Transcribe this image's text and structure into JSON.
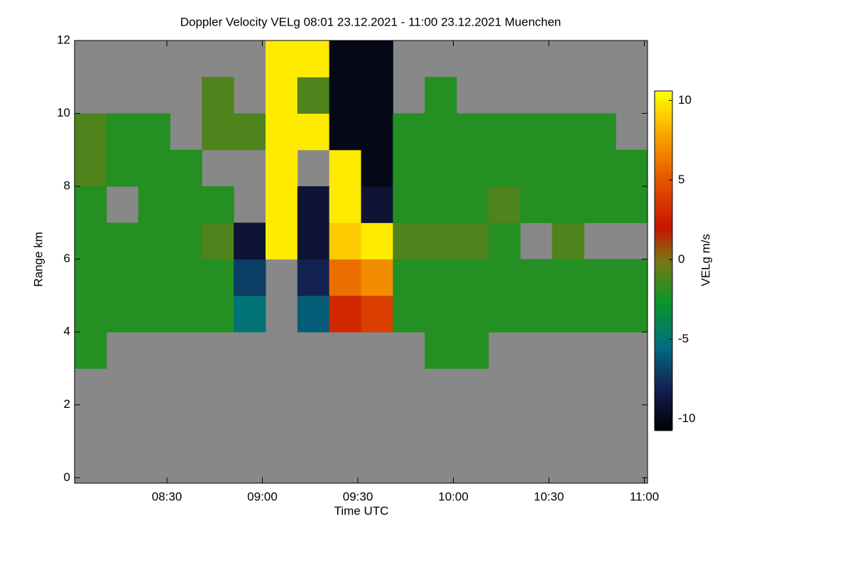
{
  "chart_data": {
    "type": "heatmap",
    "title": "Doppler Velocity VELg   08:01 23.12.2021 - 11:00 23.12.2021 Muenchen",
    "x_label": "Time UTC",
    "y_label": "Range km",
    "colorbar_label": "VELg m/s",
    "xlim": [
      481,
      661
    ],
    "xticks": [
      {
        "value": 510,
        "label": "08:30"
      },
      {
        "value": 540,
        "label": "09:00"
      },
      {
        "value": 570,
        "label": "09:30"
      },
      {
        "value": 600,
        "label": "10:00"
      },
      {
        "value": 630,
        "label": "10:30"
      },
      {
        "value": 660,
        "label": "11:00"
      }
    ],
    "ylim": [
      -0.15,
      12
    ],
    "yticks": [
      0,
      2,
      4,
      6,
      8,
      10,
      12
    ],
    "clim": [
      -10.7,
      10.6
    ],
    "cticks": [
      -10,
      -5,
      0,
      5,
      10
    ],
    "x": [
      486,
      496,
      506,
      516,
      526,
      536,
      546,
      556,
      566,
      576,
      586,
      596,
      606,
      616,
      626,
      636,
      646,
      656
    ],
    "y": [
      0.5,
      1.5,
      2.5,
      3.5,
      4.5,
      5.5,
      6.5,
      7.5,
      8.5,
      9.5,
      10.5,
      11.5
    ],
    "z": [
      [
        null,
        null,
        null,
        null,
        null,
        null,
        null,
        null,
        null,
        null,
        null,
        null,
        null,
        null,
        null,
        null,
        null,
        null
      ],
      [
        null,
        null,
        null,
        null,
        null,
        null,
        null,
        null,
        null,
        null,
        null,
        null,
        null,
        null,
        null,
        null,
        null,
        null
      ],
      [
        null,
        null,
        null,
        null,
        null,
        null,
        null,
        null,
        null,
        null,
        null,
        null,
        null,
        null,
        null,
        null,
        null,
        null
      ],
      [
        -2,
        null,
        null,
        null,
        null,
        null,
        null,
        null,
        null,
        null,
        null,
        -2,
        -2,
        null,
        null,
        null,
        null,
        null
      ],
      [
        -2,
        -2,
        -2,
        -2,
        -2,
        -5,
        null,
        -6,
        3,
        4,
        -2,
        -2,
        -2,
        -2,
        -2,
        -2,
        -2,
        -2
      ],
      [
        -2,
        -2,
        -2,
        -2,
        -2,
        -7,
        null,
        -8,
        6,
        7,
        -2,
        -2,
        -2,
        -2,
        -2,
        -2,
        -2,
        -2
      ],
      [
        -2,
        -2,
        -2,
        -2,
        -1,
        -9,
        10,
        -9,
        9,
        10,
        -1,
        -1,
        -1,
        -2,
        null,
        -1,
        null,
        null
      ],
      [
        -2,
        null,
        -2,
        -2,
        -2,
        null,
        10,
        -9,
        10,
        -9,
        -2,
        -2,
        -2,
        -1,
        -2,
        -2,
        -2,
        -2
      ],
      [
        -1,
        -2,
        -2,
        -2,
        null,
        null,
        10,
        null,
        10,
        -10,
        -2,
        -2,
        -2,
        -2,
        -2,
        -2,
        -2,
        -2
      ],
      [
        -1,
        -2,
        -2,
        null,
        -1,
        -1,
        10,
        10,
        -10,
        -10,
        -2,
        -2,
        -2,
        -2,
        -2,
        -2,
        -2,
        null
      ],
      [
        null,
        null,
        null,
        null,
        -1,
        null,
        10,
        -1,
        -10,
        -10,
        null,
        -2,
        null,
        null,
        null,
        null,
        null,
        null
      ],
      [
        null,
        null,
        null,
        null,
        null,
        null,
        10,
        10,
        -10,
        -10,
        null,
        null,
        null,
        null,
        null,
        null,
        null,
        null
      ]
    ]
  }
}
